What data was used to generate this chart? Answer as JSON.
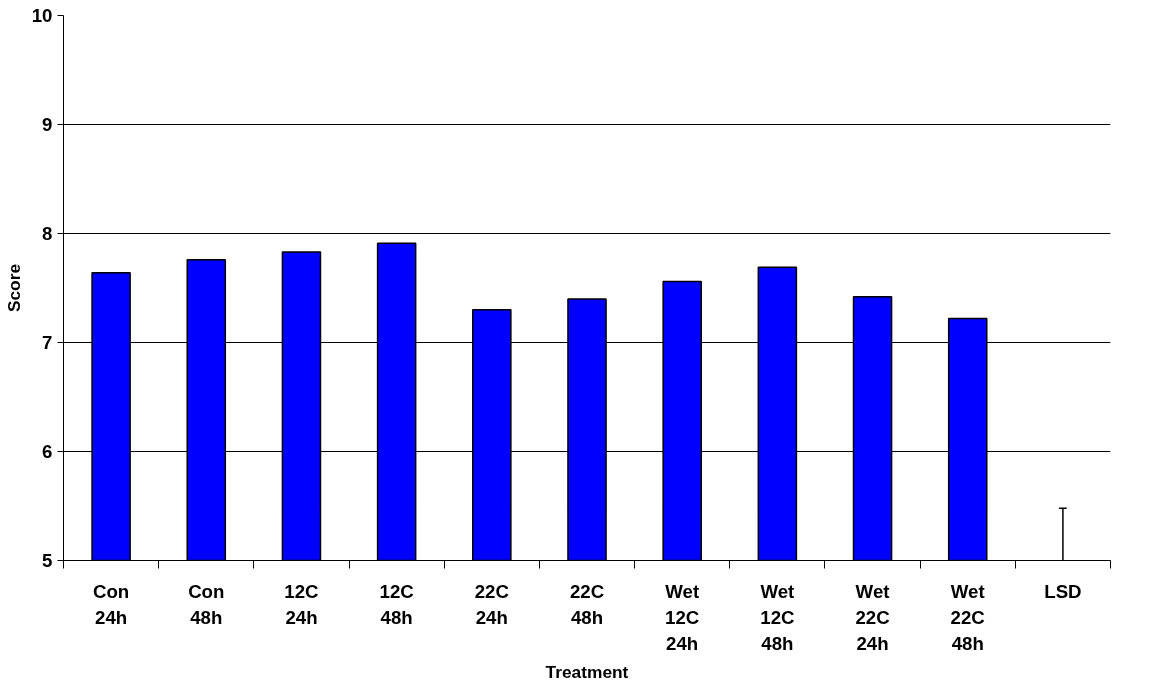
{
  "chart_data": {
    "type": "bar",
    "xlabel": "Treatment",
    "ylabel": "Score",
    "categories": [
      "Con\n24h",
      "Con\n48h",
      "12C\n24h",
      "12C\n48h",
      "22C\n24h",
      "22C\n48h",
      "Wet\n12C\n24h",
      "Wet\n12C\n48h",
      "Wet\n22C\n24h",
      "Wet\n22C\n48h",
      "LSD"
    ],
    "series": [
      {
        "color": "#0000ff",
        "values": [
          7.64,
          7.76,
          7.83,
          7.91,
          7.3,
          7.4,
          7.56,
          7.69,
          7.42,
          7.22,
          5
        ],
        "errors": [
          null,
          null,
          null,
          null,
          null,
          null,
          null,
          null,
          null,
          null,
          [
            5,
            5.48
          ]
        ]
      }
    ],
    "ylim": [
      5,
      10
    ],
    "yticks": [
      5,
      6,
      7,
      8,
      9,
      10
    ],
    "grid": "y"
  }
}
